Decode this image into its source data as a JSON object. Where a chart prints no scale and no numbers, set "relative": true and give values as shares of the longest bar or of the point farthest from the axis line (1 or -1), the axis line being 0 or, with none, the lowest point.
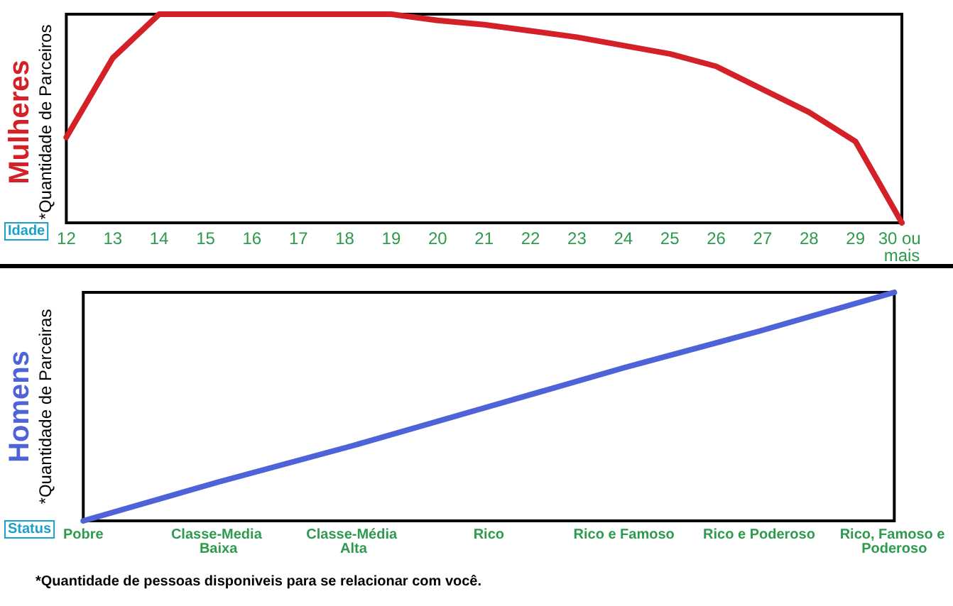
{
  "chart_data": [
    {
      "type": "line",
      "title": "Mulheres",
      "ylabel": "*Quantidade de Parceiros",
      "xlabel": "Idade",
      "relative": true,
      "marker": "none",
      "categories": [
        "12",
        "13",
        "14",
        "15",
        "16",
        "17",
        "18",
        "19",
        "20",
        "21",
        "22",
        "23",
        "24",
        "25",
        "26",
        "27",
        "28",
        "29",
        "30 ou mais"
      ],
      "series": [
        {
          "color": "#d42027",
          "values": [
            0.41,
            0.79,
            1,
            1,
            1,
            1,
            1,
            1,
            0.97,
            0.95,
            0.92,
            0.89,
            0.85,
            0.81,
            0.75,
            0.64,
            0.53,
            0.39,
            0
          ]
        }
      ]
    },
    {
      "type": "line",
      "title": "Homens",
      "ylabel": "*Quantidade de Parceiras",
      "xlabel": "Status",
      "relative": true,
      "marker": "none",
      "categories": [
        "Pobre",
        "Classe-Media Baixa",
        "Classe-Média Alta",
        "Rico",
        "Rico e Famoso",
        "Rico e Poderoso",
        "Rico, Famoso e Poderoso"
      ],
      "series": [
        {
          "color": "#4f63d9",
          "values": [
            0,
            0.17,
            0.33,
            0.5,
            0.67,
            0.83,
            1
          ]
        }
      ],
      "annotations": [
        "*Quantidade de pessoas disponiveis para se relacionar com você."
      ]
    }
  ]
}
